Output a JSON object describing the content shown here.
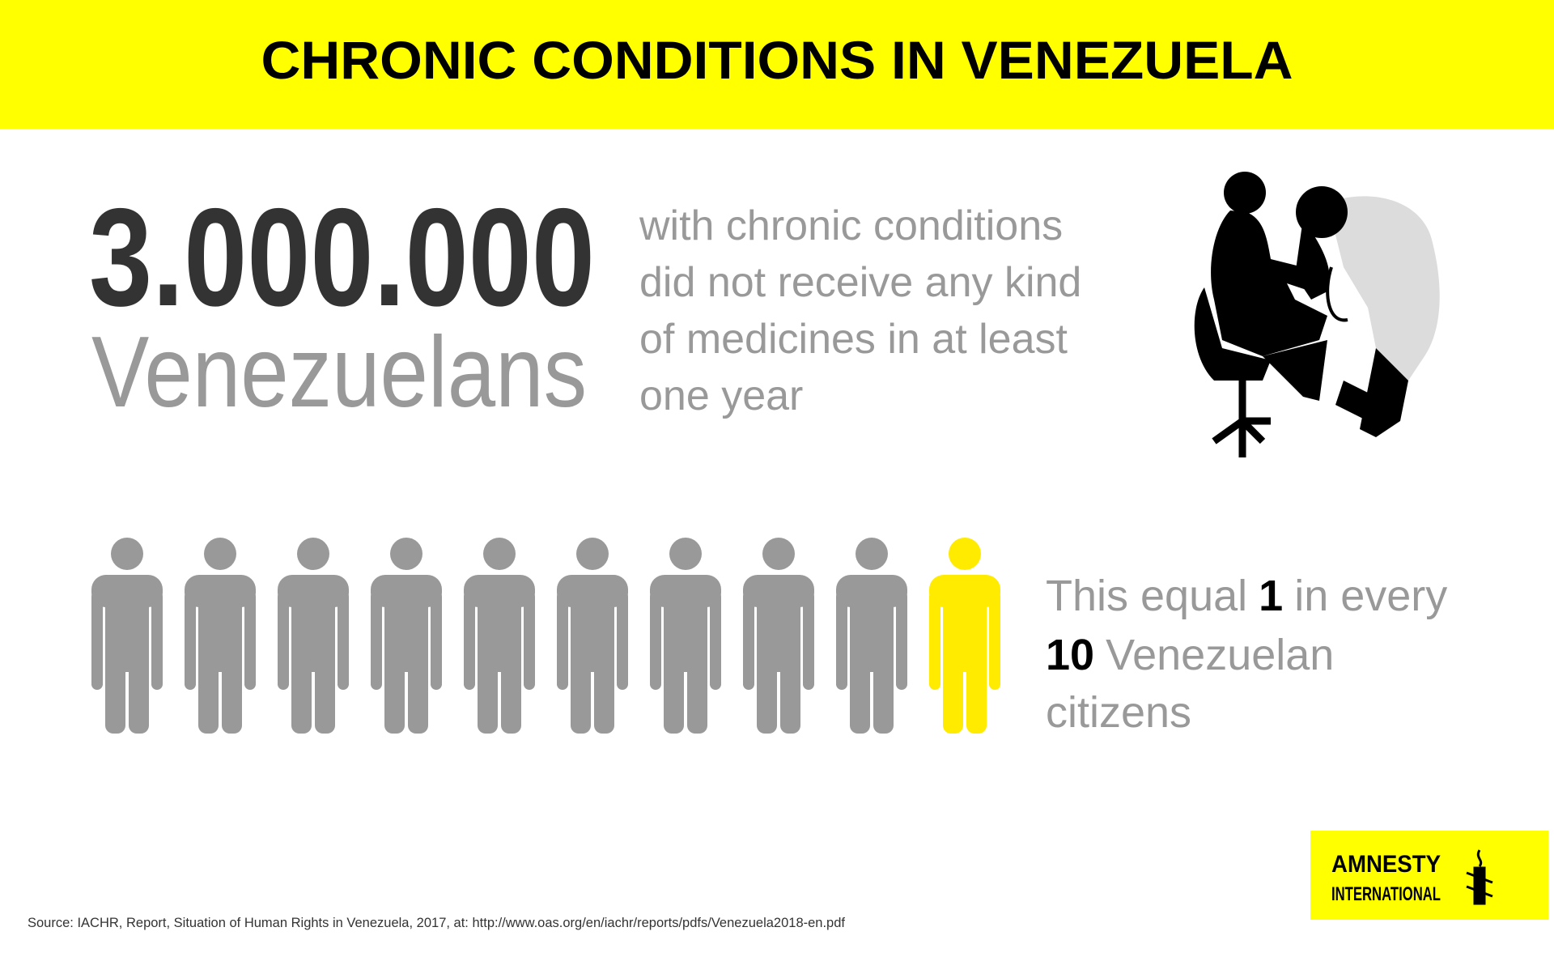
{
  "header": {
    "title": "CHRONIC CONDITIONS IN VENEZUELA"
  },
  "headline": {
    "number": "3.000.000",
    "unit": "Venezuelans",
    "description_lines": [
      "with chronic conditions",
      "did not receive any kind",
      "of medicines in at least",
      "one year"
    ]
  },
  "ratio": {
    "prefix": "This equal",
    "count": 1,
    "middle": "in every",
    "total": 10,
    "suffix_lines": [
      "Venezuelan",
      "citizens"
    ]
  },
  "logo": {
    "line1": "AMNESTY",
    "line2": "INTERNATIONAL"
  },
  "source": "Source: IACHR, Report, Situation of Human Rights in Venezuela, 2017, at: http://www.oas.org/en/iachr/reports/pdfs/Venezuela2018-en.pdf"
}
